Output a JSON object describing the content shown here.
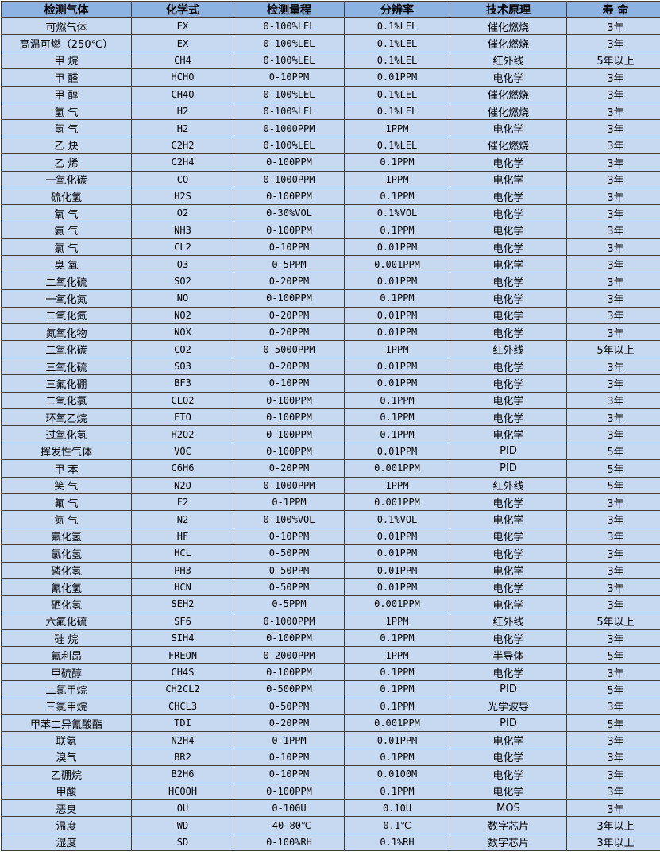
{
  "colors": {
    "header_bg": "#8db3e2",
    "row_bg": "#c6d9f1"
  },
  "headers": [
    "检测气体",
    "化学式",
    "检测量程",
    "分辨率",
    "技术原理",
    "寿 命"
  ],
  "rows": [
    [
      "可燃气体",
      "EX",
      "0-100%LEL",
      "0.1%LEL",
      "催化燃烧",
      "3年"
    ],
    [
      "高温可燃（250℃）",
      "EX",
      "0-100%LEL",
      "0.1%LEL",
      "催化燃烧",
      "3年"
    ],
    [
      "甲 烷",
      "CH4",
      "0-100%LEL",
      "0.1%LEL",
      "红外线",
      "5年以上"
    ],
    [
      "甲 醛",
      "HCHO",
      "0-10PPM",
      "0.01PPM",
      "电化学",
      "3年"
    ],
    [
      "甲 醇",
      "CH4O",
      "0-100%LEL",
      "0.1%LEL",
      "催化燃烧",
      "3年"
    ],
    [
      "氢 气",
      "H2",
      "0-100%LEL",
      "0.1%LEL",
      "催化燃烧",
      "3年"
    ],
    [
      "氢 气",
      "H2",
      "0-1000PPM",
      "1PPM",
      "电化学",
      "3年"
    ],
    [
      "乙 炔",
      "C2H2",
      "0-100%LEL",
      "0.1%LEL",
      "催化燃烧",
      "3年"
    ],
    [
      "乙 烯",
      "C2H4",
      "0-100PPM",
      "0.1PPM",
      "电化学",
      "3年"
    ],
    [
      "一氧化碳",
      "CO",
      "0-1000PPM",
      "1PPM",
      "电化学",
      "3年"
    ],
    [
      "硫化氢",
      "H2S",
      "0-100PPM",
      "0.1PPM",
      "电化学",
      "3年"
    ],
    [
      "氧 气",
      "O2",
      "0-30%VOL",
      "0.1%VOL",
      "电化学",
      "3年"
    ],
    [
      "氨 气",
      "NH3",
      "0-100PPM",
      "0.1PPM",
      "电化学",
      "3年"
    ],
    [
      "氯 气",
      "CL2",
      "0-10PPM",
      "0.01PPM",
      "电化学",
      "3年"
    ],
    [
      "臭 氧",
      "O3",
      "0-5PPM",
      "0.001PPM",
      "电化学",
      "3年"
    ],
    [
      "二氧化硫",
      "SO2",
      "0-20PPM",
      "0.01PPM",
      "电化学",
      "3年"
    ],
    [
      "一氧化氮",
      "NO",
      "0-100PPM",
      "0.1PPM",
      "电化学",
      "3年"
    ],
    [
      "二氧化氮",
      "NO2",
      "0-20PPM",
      "0.01PPM",
      "电化学",
      "3年"
    ],
    [
      "氮氧化物",
      "NOX",
      "0-20PPM",
      "0.01PPM",
      "电化学",
      "3年"
    ],
    [
      "二氧化碳",
      "CO2",
      "0-5000PPM",
      "1PPM",
      "红外线",
      "5年以上"
    ],
    [
      "三氧化硫",
      "SO3",
      "0-20PPM",
      "0.01PPM",
      "电化学",
      "3年"
    ],
    [
      "三氟化硼",
      "BF3",
      "0-10PPM",
      "0.01PPM",
      "电化学",
      "3年"
    ],
    [
      "二氧化氯",
      "CLO2",
      "0-100PPM",
      "0.1PPM",
      "电化学",
      "3年"
    ],
    [
      "环氧乙烷",
      "ETO",
      "0-100PPM",
      "0.1PPM",
      "电化学",
      "3年"
    ],
    [
      "过氧化氢",
      "H2O2",
      "0-100PPM",
      "0.1PPM",
      "电化学",
      "3年"
    ],
    [
      "挥发性气体",
      "VOC",
      "0-100PPM",
      "0.01PPM",
      "PID",
      "5年"
    ],
    [
      "甲 苯",
      "C6H6",
      "0-20PPM",
      "0.001PPM",
      "PID",
      "5年"
    ],
    [
      "笑 气",
      "N2O",
      "0-1000PPM",
      "1PPM",
      "红外线",
      "5年"
    ],
    [
      "氟 气",
      "F2",
      "0-1PPM",
      "0.001PPM",
      "电化学",
      "3年"
    ],
    [
      "氮 气",
      "N2",
      "0-100%VOL",
      "0.1%VOL",
      "电化学",
      "3年"
    ],
    [
      "氟化氢",
      "HF",
      "0-10PPM",
      "0.01PPM",
      "电化学",
      "3年"
    ],
    [
      "氯化氢",
      "HCL",
      "0-50PPM",
      "0.01PPM",
      "电化学",
      "3年"
    ],
    [
      "磷化氢",
      "PH3",
      "0-50PPM",
      "0.01PPM",
      "电化学",
      "3年"
    ],
    [
      "氰化氢",
      "HCN",
      "0-50PPM",
      "0.01PPM",
      "电化学",
      "3年"
    ],
    [
      "硒化氢",
      "SEH2",
      "0-5PPM",
      "0.001PPM",
      "电化学",
      "3年"
    ],
    [
      "六氟化硫",
      "SF6",
      "0-1000PPM",
      "1PPM",
      "红外线",
      "5年以上"
    ],
    [
      "硅 烷",
      "SIH4",
      "0-100PPM",
      "0.1PPM",
      "电化学",
      "3年"
    ],
    [
      "氟利昂",
      "FREON",
      "0-2000PPM",
      "1PPM",
      "半导体",
      "5年"
    ],
    [
      "甲硫醇",
      "CH4S",
      "0-100PPM",
      "0.1PPM",
      "电化学",
      "3年"
    ],
    [
      "二氯甲烷",
      "CH2CL2",
      "0-500PPM",
      "0.1PPM",
      "PID",
      "5年"
    ],
    [
      "三氯甲烷",
      "CHCL3",
      "0-50PPM",
      "0.1PPM",
      "光学波导",
      "3年"
    ],
    [
      "甲苯二异氰酸酯",
      "TDI",
      "0-20PPM",
      "0.001PPM",
      "PID",
      "5年"
    ],
    [
      "联氨",
      "N2H4",
      "0-1PPM",
      "0.01PPM",
      "电化学",
      "3年"
    ],
    [
      "溴气",
      "BR2",
      "0-10PPM",
      "0.1PPM",
      "电化学",
      "3年"
    ],
    [
      "乙硼烷",
      "B2H6",
      "0-10PPM",
      "0.0100M",
      "电化学",
      "3年"
    ],
    [
      "甲酸",
      "HCOOH",
      "0-100PPM",
      "0.1PPM",
      "电化学",
      "3年"
    ],
    [
      "恶臭",
      "OU",
      "0-100U",
      "0.10U",
      "MOS",
      "3年"
    ],
    [
      "温度",
      "WD",
      "-40—80℃",
      "0.1℃",
      "数字芯片",
      "3年以上"
    ],
    [
      "湿度",
      "SD",
      "0-100%RH",
      "0.1%RH",
      "数字芯片",
      "3年以上"
    ]
  ]
}
